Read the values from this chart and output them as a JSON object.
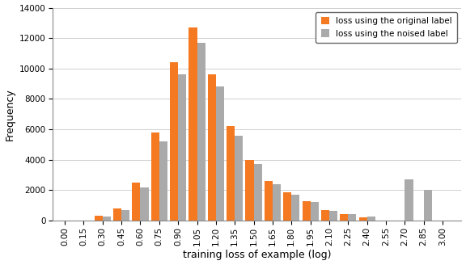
{
  "categories": [
    0.0,
    0.15,
    0.3,
    0.45,
    0.6,
    0.75,
    0.9,
    1.05,
    1.2,
    1.35,
    1.5,
    1.65,
    1.8,
    1.95,
    2.1,
    2.25,
    2.4,
    2.55,
    2.7,
    2.85,
    3.0
  ],
  "original": [
    0,
    0,
    300,
    800,
    2500,
    5800,
    10400,
    12700,
    9600,
    6200,
    4000,
    2600,
    1850,
    1300,
    700,
    400,
    200,
    0,
    0,
    0,
    0
  ],
  "noised": [
    0,
    0,
    250,
    700,
    2200,
    5200,
    9600,
    11700,
    8800,
    5600,
    3700,
    2400,
    1700,
    1200,
    650,
    400,
    250,
    0,
    2700,
    2000,
    0
  ],
  "orange_color": "#f47920",
  "gray_color": "#aaaaaa",
  "ylabel": "Frequency",
  "xlabel": "training loss of example (log)",
  "legend_original": "loss using the original label",
  "legend_noised": "loss using the noised label",
  "ylim": [
    0,
    14000
  ],
  "yticks": [
    0,
    2000,
    4000,
    6000,
    8000,
    10000,
    12000,
    14000
  ],
  "bar_width": 0.065,
  "figsize": [
    5.76,
    3.28
  ],
  "dpi": 100,
  "bg_color": "#ffffff",
  "grid_color": "#d0d0d0"
}
